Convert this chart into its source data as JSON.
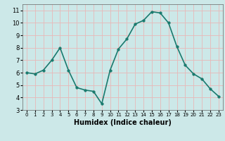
{
  "x": [
    0,
    1,
    2,
    3,
    4,
    5,
    6,
    7,
    8,
    9,
    10,
    11,
    12,
    13,
    14,
    15,
    16,
    17,
    18,
    19,
    20,
    21,
    22,
    23
  ],
  "y": [
    6.0,
    5.9,
    6.2,
    7.0,
    8.0,
    6.2,
    4.8,
    4.6,
    4.5,
    3.5,
    6.2,
    7.9,
    8.7,
    9.9,
    10.2,
    10.9,
    10.8,
    10.0,
    8.1,
    6.6,
    5.9,
    5.5,
    4.7,
    4.1
  ],
  "xlabel": "Humidex (Indice chaleur)",
  "ylim": [
    3,
    11.5
  ],
  "xlim": [
    -0.5,
    23.5
  ],
  "yticks": [
    3,
    4,
    5,
    6,
    7,
    8,
    9,
    10,
    11
  ],
  "xticks": [
    0,
    1,
    2,
    3,
    4,
    5,
    6,
    7,
    8,
    9,
    10,
    11,
    12,
    13,
    14,
    15,
    16,
    17,
    18,
    19,
    20,
    21,
    22,
    23
  ],
  "line_color": "#1a7a6e",
  "marker_color": "#1a7a6e",
  "bg_color": "#cce8e8",
  "grid_color": "#e8b8b8",
  "line_width": 1.2,
  "marker_size": 2.5
}
